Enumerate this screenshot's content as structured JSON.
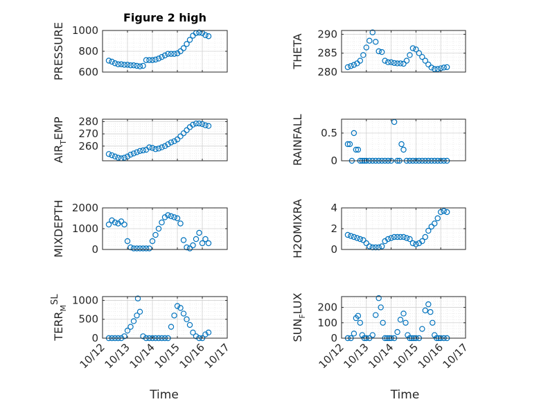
{
  "colors": {
    "marker": "#0072BD",
    "axis": "#262626",
    "grid": "#dfdfdf",
    "background": "#ffffff"
  },
  "chart_data": [
    {
      "type": "scatter",
      "title": "Figure 2 high",
      "ylabel": "PRESSURE",
      "ylabel_parts": [
        {
          "t": "PRESSURE",
          "s": ""
        }
      ],
      "ylim": [
        600,
        1000
      ],
      "yticks": [
        600,
        800,
        1000
      ],
      "xlim": [
        "10/12",
        "10/16 06:00"
      ],
      "grid": true,
      "series": [
        {
          "x": [
            "10/12 06:00",
            "10/12 09:00",
            "10/12 12:00",
            "10/12 15:00",
            "10/12 18:00",
            "10/12 21:00",
            "10/13 00:00",
            "10/13 03:00",
            "10/13 06:00",
            "10/13 09:00",
            "10/13 12:00",
            "10/13 15:00",
            "10/13 18:00",
            "10/13 21:00",
            "10/14 00:00",
            "10/14 03:00",
            "10/14 06:00",
            "10/14 09:00",
            "10/14 12:00",
            "10/14 15:00",
            "10/14 18:00",
            "10/14 21:00",
            "10/15 00:00",
            "10/15 03:00",
            "10/15 06:00",
            "10/15 09:00",
            "10/15 12:00",
            "10/15 15:00",
            "10/15 18:00",
            "10/15 21:00",
            "10/16 00:00",
            "10/16 03:00",
            "10/16 06:00"
          ],
          "y": [
            710,
            700,
            685,
            675,
            675,
            670,
            670,
            665,
            665,
            660,
            655,
            660,
            715,
            715,
            715,
            720,
            730,
            745,
            760,
            775,
            775,
            775,
            780,
            800,
            830,
            870,
            910,
            950,
            975,
            980,
            975,
            955,
            945
          ]
        }
      ]
    },
    {
      "type": "scatter",
      "ylabel": "THETA",
      "ylabel_parts": [
        {
          "t": "THETA",
          "s": ""
        }
      ],
      "ylim": [
        280,
        291
      ],
      "yticks": [
        280,
        285,
        290
      ],
      "xlim": [
        "10/12",
        "10/16 06:00"
      ],
      "grid": true,
      "series": [
        {
          "x": [
            "10/12 06:00",
            "10/12 09:00",
            "10/12 12:00",
            "10/12 15:00",
            "10/12 18:00",
            "10/12 21:00",
            "10/13 00:00",
            "10/13 03:00",
            "10/13 06:00",
            "10/13 09:00",
            "10/13 12:00",
            "10/13 15:00",
            "10/13 18:00",
            "10/13 21:00",
            "10/14 00:00",
            "10/14 03:00",
            "10/14 06:00",
            "10/14 09:00",
            "10/14 12:00",
            "10/14 15:00",
            "10/14 18:00",
            "10/14 21:00",
            "10/15 00:00",
            "10/15 03:00",
            "10/15 06:00",
            "10/15 09:00",
            "10/15 12:00",
            "10/15 15:00",
            "10/15 18:00",
            "10/15 21:00",
            "10/16 00:00",
            "10/16 03:00",
            "10/16 06:00"
          ],
          "y": [
            281.3,
            281.6,
            281.9,
            282.3,
            283.0,
            284.5,
            286.5,
            288.3,
            290.5,
            288.0,
            285.5,
            285.3,
            283.0,
            282.6,
            282.6,
            282.4,
            282.3,
            282.3,
            282.2,
            283.0,
            284.5,
            286.3,
            286.0,
            285.0,
            284.0,
            283.0,
            282.0,
            281.2,
            280.8,
            280.8,
            281.0,
            281.2,
            281.3
          ]
        }
      ]
    },
    {
      "type": "scatter",
      "ylabel": "AIR_TEMP",
      "ylabel_parts": [
        {
          "t": "AIR",
          "s": ""
        },
        {
          "t": "T",
          "s": "sub"
        },
        {
          "t": "EMP",
          "s": ""
        }
      ],
      "ylim": [
        248,
        282
      ],
      "yticks": [
        260,
        270,
        280
      ],
      "xlim": [
        "10/12",
        "10/16 06:00"
      ],
      "grid": true,
      "series": [
        {
          "x": [
            "10/12 06:00",
            "10/12 09:00",
            "10/12 12:00",
            "10/12 15:00",
            "10/12 18:00",
            "10/12 21:00",
            "10/13 00:00",
            "10/13 03:00",
            "10/13 06:00",
            "10/13 09:00",
            "10/13 12:00",
            "10/13 15:00",
            "10/13 18:00",
            "10/13 21:00",
            "10/14 00:00",
            "10/14 03:00",
            "10/14 06:00",
            "10/14 09:00",
            "10/14 12:00",
            "10/14 15:00",
            "10/14 18:00",
            "10/14 21:00",
            "10/15 00:00",
            "10/15 03:00",
            "10/15 06:00",
            "10/15 09:00",
            "10/15 12:00",
            "10/15 15:00",
            "10/15 18:00",
            "10/15 21:00",
            "10/16 00:00",
            "10/16 03:00",
            "10/16 06:00"
          ],
          "y": [
            253.5,
            252.5,
            251.5,
            250.5,
            250.0,
            250.5,
            251.5,
            253.0,
            254.0,
            255.0,
            256.0,
            256.5,
            257.0,
            259.0,
            258.5,
            257.5,
            258.0,
            259.0,
            260.0,
            261.5,
            263.0,
            264.0,
            265.5,
            268.0,
            270.5,
            273.0,
            275.5,
            277.5,
            278.5,
            278.5,
            278.0,
            277.0,
            276.5
          ]
        }
      ]
    },
    {
      "type": "scatter",
      "ylabel": "RAINFALL",
      "ylabel_parts": [
        {
          "t": "RAINFALL",
          "s": ""
        }
      ],
      "ylim": [
        0,
        0.75
      ],
      "yticks": [
        0,
        0.5
      ],
      "xlim": [
        "10/12",
        "10/16 06:00"
      ],
      "grid": true,
      "series": [
        {
          "x": [
            "10/12 06:00",
            "10/12 08:00",
            "10/12 10:00",
            "10/12 12:00",
            "10/12 14:00",
            "10/12 16:00",
            "10/12 18:00",
            "10/12 20:00",
            "10/12 22:00",
            "10/13 00:00",
            "10/13 03:00",
            "10/13 06:00",
            "10/13 09:00",
            "10/13 12:00",
            "10/13 15:00",
            "10/13 18:00",
            "10/13 21:00",
            "10/14 00:00",
            "10/14 03:00",
            "10/14 06:00",
            "10/14 08:00",
            "10/14 10:00",
            "10/14 12:00",
            "10/14 15:00",
            "10/14 18:00",
            "10/14 21:00",
            "10/15 00:00",
            "10/15 03:00",
            "10/15 06:00",
            "10/15 09:00",
            "10/15 12:00",
            "10/15 15:00",
            "10/15 18:00",
            "10/15 21:00",
            "10/16 00:00",
            "10/16 03:00",
            "10/16 06:00"
          ],
          "y": [
            0.3,
            0.3,
            0.0,
            0.5,
            0.2,
            0.2,
            0.0,
            0.0,
            0.0,
            0.0,
            0.0,
            0.0,
            0.0,
            0.0,
            0.0,
            0.0,
            0.0,
            0.0,
            0.7,
            0.0,
            0.0,
            0.3,
            0.2,
            0.0,
            0.0,
            0.0,
            0.0,
            0.0,
            0.0,
            0.0,
            0.0,
            0.0,
            0.0,
            0.0,
            0.0,
            0.0,
            0.0
          ]
        }
      ]
    },
    {
      "type": "scatter",
      "ylabel": "MIXDEPTH",
      "ylabel_parts": [
        {
          "t": "MIXDEPTH",
          "s": ""
        }
      ],
      "ylim": [
        0,
        2000
      ],
      "yticks": [
        0,
        1000,
        2000
      ],
      "xlim": [
        "10/12",
        "10/16 06:00"
      ],
      "grid": true,
      "series": [
        {
          "x": [
            "10/12 06:00",
            "10/12 09:00",
            "10/12 12:00",
            "10/12 15:00",
            "10/12 18:00",
            "10/12 21:00",
            "10/13 00:00",
            "10/13 03:00",
            "10/13 06:00",
            "10/13 09:00",
            "10/13 12:00",
            "10/13 15:00",
            "10/13 18:00",
            "10/13 21:00",
            "10/14 00:00",
            "10/14 03:00",
            "10/14 06:00",
            "10/14 09:00",
            "10/14 12:00",
            "10/14 15:00",
            "10/14 18:00",
            "10/14 21:00",
            "10/15 00:00",
            "10/15 03:00",
            "10/15 06:00",
            "10/15 09:00",
            "10/15 12:00",
            "10/15 15:00",
            "10/15 18:00",
            "10/15 21:00",
            "10/16 00:00",
            "10/16 03:00",
            "10/16 06:00"
          ],
          "y": [
            1200,
            1400,
            1300,
            1250,
            1350,
            1200,
            400,
            100,
            50,
            50,
            50,
            50,
            50,
            50,
            400,
            700,
            1000,
            1300,
            1550,
            1650,
            1600,
            1550,
            1500,
            1250,
            450,
            100,
            50,
            200,
            500,
            800,
            300,
            500,
            300
          ]
        }
      ]
    },
    {
      "type": "scatter",
      "ylabel": "H2OMIXRA",
      "ylabel_parts": [
        {
          "t": "H2OMIXRA",
          "s": ""
        }
      ],
      "ylim": [
        0,
        4
      ],
      "yticks": [
        0,
        2,
        4
      ],
      "xlim": [
        "10/12",
        "10/16 06:00"
      ],
      "grid": true,
      "series": [
        {
          "x": [
            "10/12 06:00",
            "10/12 09:00",
            "10/12 12:00",
            "10/12 15:00",
            "10/12 18:00",
            "10/12 21:00",
            "10/13 00:00",
            "10/13 03:00",
            "10/13 06:00",
            "10/13 09:00",
            "10/13 12:00",
            "10/13 15:00",
            "10/13 18:00",
            "10/13 21:00",
            "10/14 00:00",
            "10/14 03:00",
            "10/14 06:00",
            "10/14 09:00",
            "10/14 12:00",
            "10/14 15:00",
            "10/14 18:00",
            "10/14 21:00",
            "10/15 00:00",
            "10/15 03:00",
            "10/15 06:00",
            "10/15 09:00",
            "10/15 12:00",
            "10/15 15:00",
            "10/15 18:00",
            "10/15 21:00",
            "10/16 00:00",
            "10/16 03:00",
            "10/16 06:00"
          ],
          "y": [
            1.4,
            1.3,
            1.2,
            1.1,
            1.0,
            0.9,
            0.6,
            0.3,
            0.2,
            0.2,
            0.2,
            0.3,
            0.8,
            1.0,
            1.1,
            1.2,
            1.2,
            1.2,
            1.2,
            1.1,
            1.0,
            0.6,
            0.5,
            0.6,
            0.8,
            1.2,
            1.8,
            2.2,
            2.5,
            3.0,
            3.6,
            3.7,
            3.6
          ]
        }
      ]
    },
    {
      "type": "scatter",
      "ylabel": "TERR_MSL",
      "ylabel_parts": [
        {
          "t": "TERR",
          "s": ""
        },
        {
          "t": "M",
          "s": "sub"
        },
        {
          "t": "SL",
          "s": "sup"
        }
      ],
      "ylim": [
        0,
        1100
      ],
      "yticks": [
        0,
        500,
        1000
      ],
      "xlim": [
        "10/12",
        "10/16 06:00"
      ],
      "grid": true,
      "series": [
        {
          "x": [
            "10/12 06:00",
            "10/12 09:00",
            "10/12 12:00",
            "10/12 15:00",
            "10/12 18:00",
            "10/12 21:00",
            "10/13 00:00",
            "10/13 03:00",
            "10/13 06:00",
            "10/13 09:00",
            "10/13 10:00",
            "10/13 12:00",
            "10/13 15:00",
            "10/13 18:00",
            "10/13 21:00",
            "10/14 00:00",
            "10/14 03:00",
            "10/14 06:00",
            "10/14 09:00",
            "10/14 12:00",
            "10/14 15:00",
            "10/14 18:00",
            "10/14 21:00",
            "10/15 00:00",
            "10/15 03:00",
            "10/15 06:00",
            "10/15 09:00",
            "10/15 12:00",
            "10/15 15:00",
            "10/15 18:00",
            "10/15 21:00",
            "10/16 00:00",
            "10/16 03:00",
            "10/16 06:00"
          ],
          "y": [
            0,
            0,
            0,
            0,
            0,
            50,
            200,
            300,
            450,
            600,
            1050,
            700,
            50,
            0,
            0,
            0,
            0,
            0,
            0,
            0,
            0,
            300,
            600,
            850,
            800,
            650,
            500,
            350,
            150,
            50,
            0,
            0,
            100,
            150
          ]
        }
      ]
    },
    {
      "type": "scatter",
      "ylabel": "SUN_FLUX",
      "ylabel_parts": [
        {
          "t": "SUN",
          "s": ""
        },
        {
          "t": "F",
          "s": "sub"
        },
        {
          "t": "LUX",
          "s": ""
        }
      ],
      "ylim": [
        0,
        270
      ],
      "yticks": [
        0,
        100,
        200
      ],
      "xlim": [
        "10/12",
        "10/16 06:00"
      ],
      "grid": true,
      "series": [
        {
          "x": [
            "10/12 06:00",
            "10/12 09:00",
            "10/12 12:00",
            "10/12 14:00",
            "10/12 16:00",
            "10/12 18:00",
            "10/12 20:00",
            "10/12 22:00",
            "10/13 00:00",
            "10/13 03:00",
            "10/13 06:00",
            "10/13 09:00",
            "10/13 12:00",
            "10/13 14:00",
            "10/13 16:00",
            "10/13 18:00",
            "10/13 20:00",
            "10/13 22:00",
            "10/14 00:00",
            "10/14 03:00",
            "10/14 06:00",
            "10/14 09:00",
            "10/14 12:00",
            "10/14 14:00",
            "10/14 16:00",
            "10/14 18:00",
            "10/14 20:00",
            "10/14 22:00",
            "10/15 00:00",
            "10/15 03:00",
            "10/15 06:00",
            "10/15 09:00",
            "10/15 12:00",
            "10/15 14:00",
            "10/15 16:00",
            "10/15 18:00",
            "10/15 20:00",
            "10/15 22:00",
            "10/16 00:00",
            "10/16 03:00",
            "10/16 06:00"
          ],
          "y": [
            0,
            0,
            30,
            130,
            145,
            100,
            20,
            0,
            0,
            0,
            20,
            150,
            260,
            200,
            100,
            0,
            0,
            0,
            0,
            0,
            40,
            120,
            160,
            100,
            20,
            0,
            0,
            0,
            0,
            0,
            60,
            180,
            220,
            170,
            100,
            20,
            0,
            0,
            0,
            0,
            0
          ]
        }
      ]
    }
  ],
  "x_axis": {
    "tick_labels": [
      "10/12",
      "10/13",
      "10/14",
      "10/15",
      "10/16",
      "10/17"
    ],
    "label_left": "Time",
    "label_right": "Time"
  }
}
